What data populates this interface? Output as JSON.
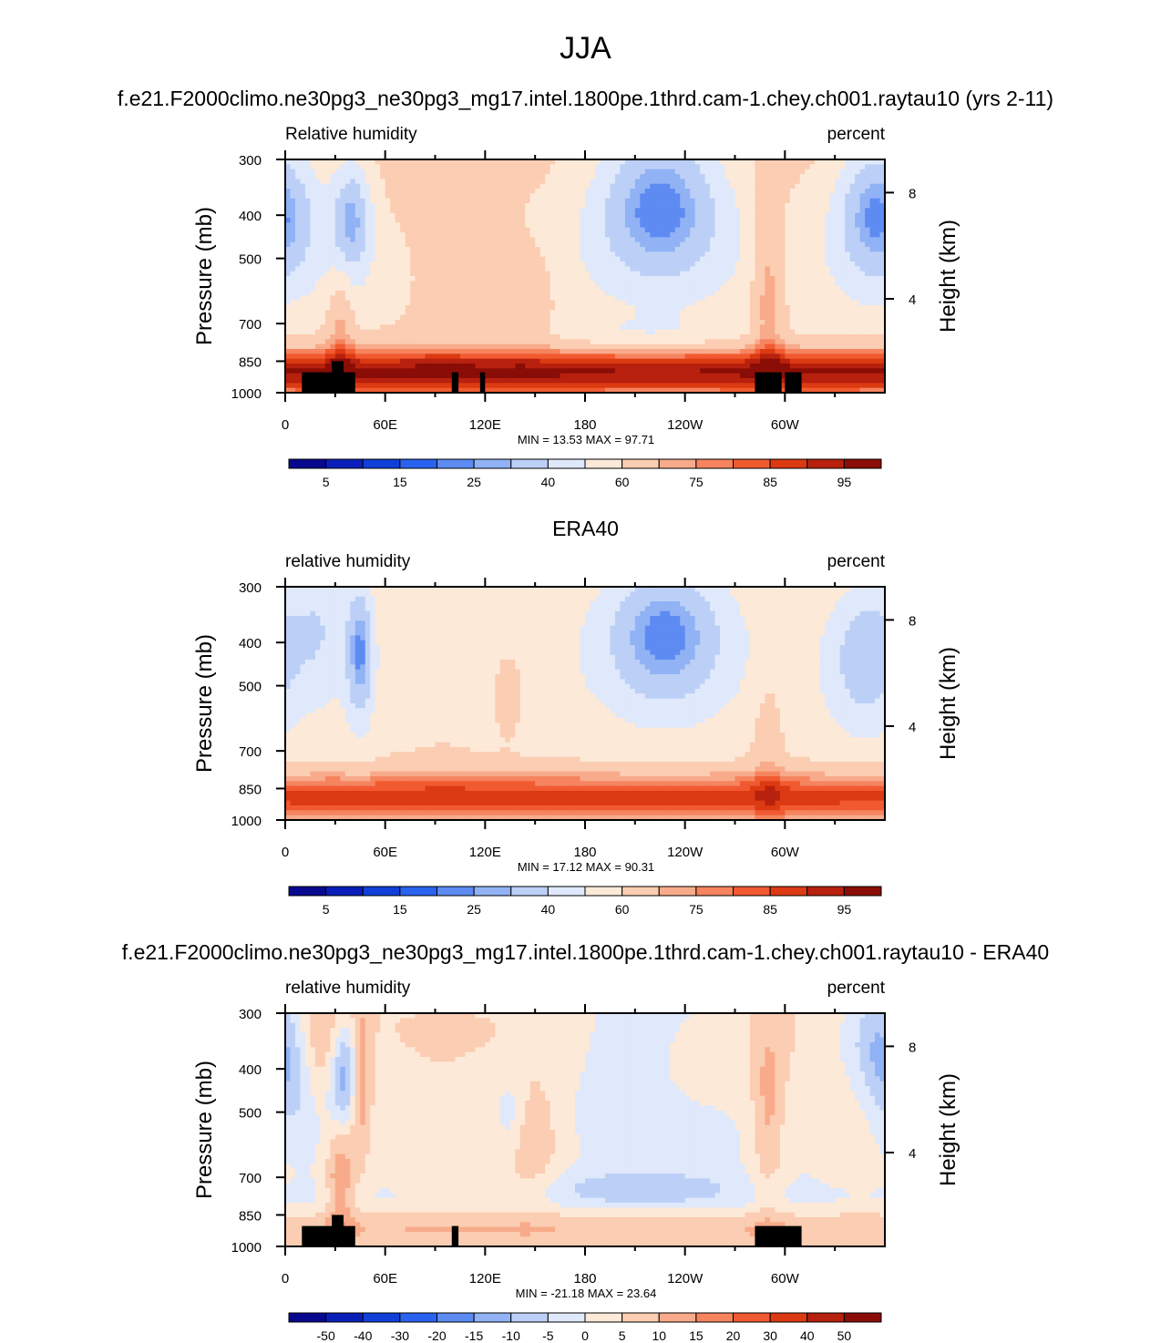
{
  "main_title": "JJA",
  "colors": {
    "rh_levels": [
      "#08088f",
      "#0a1fb9",
      "#1140d8",
      "#2a62f0",
      "#5d8bf2",
      "#91b2f5",
      "#bcd0f7",
      "#dfe9fb",
      "#fde9d8",
      "#fbcdb2",
      "#f8ab8a",
      "#f5845f",
      "#f15a30",
      "#dc3a12",
      "#b7210d",
      "#8b0d07"
    ],
    "land": "#000000"
  },
  "chart_data": [
    {
      "type": "heatmap",
      "panel_title": "f.e21.F2000climo.ne30pg3_ne30pg3_mg17.intel.1800pe.1thrd.cam-1.chey.ch001.raytau10 (yrs 2-11)",
      "left_label": "Relative humidity",
      "right_label": "percent",
      "ylabel": "Pressure (mb)",
      "ylabel_right": "Height (km)",
      "x_ticks": [
        "0",
        "60E",
        "120E",
        "180",
        "120W",
        "60W"
      ],
      "y_ticks": [
        "300",
        "400",
        "500",
        "700",
        "850",
        "1000"
      ],
      "y_right_ticks": [
        "8",
        "4"
      ],
      "min_max": "MIN =  13.53  MAX =  97.71",
      "colorbar_labels": [
        "5",
        "15",
        "25",
        "40",
        "60",
        "75",
        "85",
        "95"
      ],
      "x_range": [
        0,
        360
      ],
      "p_range": [
        1000,
        300
      ],
      "min": 13.53,
      "max": 97.71,
      "pressure_levels": [
        300,
        400,
        500,
        700,
        850,
        1000
      ]
    },
    {
      "type": "heatmap",
      "panel_title": "ERA40",
      "left_label": "relative humidity",
      "right_label": "percent",
      "ylabel": "Pressure (mb)",
      "ylabel_right": "Height (km)",
      "x_ticks": [
        "0",
        "60E",
        "120E",
        "180",
        "120W",
        "60W"
      ],
      "y_ticks": [
        "300",
        "400",
        "500",
        "700",
        "850",
        "1000"
      ],
      "y_right_ticks": [
        "8",
        "4"
      ],
      "min_max": "MIN =  17.12  MAX =  90.31",
      "colorbar_labels": [
        "5",
        "15",
        "25",
        "40",
        "60",
        "75",
        "85",
        "95"
      ],
      "x_range": [
        0,
        360
      ],
      "p_range": [
        1000,
        300
      ],
      "min": 17.12,
      "max": 90.31,
      "pressure_levels": [
        300,
        400,
        500,
        700,
        850,
        1000
      ]
    },
    {
      "type": "heatmap",
      "panel_title": "f.e21.F2000climo.ne30pg3_ne30pg3_mg17.intel.1800pe.1thrd.cam-1.chey.ch001.raytau10 - ERA40",
      "left_label": "relative humidity",
      "right_label": "percent",
      "ylabel": "Pressure (mb)",
      "ylabel_right": "Height (km)",
      "x_ticks": [
        "0",
        "60E",
        "120E",
        "180",
        "120W",
        "60W"
      ],
      "y_ticks": [
        "300",
        "400",
        "500",
        "700",
        "850",
        "1000"
      ],
      "y_right_ticks": [
        "8",
        "4"
      ],
      "min_max": "MIN = -21.18  MAX =  23.64",
      "colorbar_labels": [
        "-50",
        "-40",
        "-30",
        "-20",
        "-15",
        "-10",
        "-5",
        "0",
        "5",
        "10",
        "15",
        "20",
        "30",
        "40",
        "50"
      ],
      "x_range": [
        0,
        360
      ],
      "p_range": [
        1000,
        300
      ],
      "min": -21.18,
      "max": 23.64,
      "pressure_levels": [
        300,
        400,
        500,
        700,
        850,
        1000
      ]
    }
  ]
}
